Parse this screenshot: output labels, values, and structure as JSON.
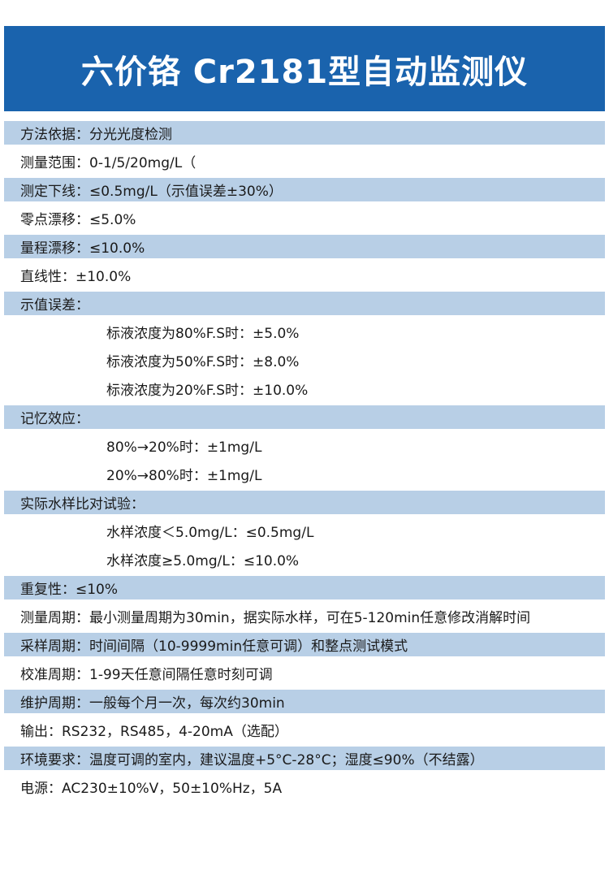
{
  "title": "六价铬 Cr2181型自动监测仪",
  "colors": {
    "header": "#1a63ad",
    "shaded_row": "#b8cfe6"
  },
  "rows": [
    {
      "text": "方法依据：分光光度检测",
      "shaded": true,
      "sub": false
    },
    {
      "text": "测量范围：0-1/5/20mg/L（",
      "shaded": false,
      "sub": false
    },
    {
      "text": "测定下线：≤0.5mg/L（示值误差±30%）",
      "shaded": true,
      "sub": false
    },
    {
      "text": "零点漂移：≤5.0%",
      "shaded": false,
      "sub": false
    },
    {
      "text": "量程漂移：≤10.0%",
      "shaded": true,
      "sub": false
    },
    {
      "text": "直线性：±10.0%",
      "shaded": false,
      "sub": false
    },
    {
      "text": "示值误差：",
      "shaded": true,
      "sub": false
    },
    {
      "text": "标液浓度为80%F.S时：±5.0%",
      "shaded": false,
      "sub": true
    },
    {
      "text": "标液浓度为50%F.S时：±8.0%",
      "shaded": false,
      "sub": true
    },
    {
      "text": "标液浓度为20%F.S时：±10.0%",
      "shaded": false,
      "sub": true
    },
    {
      "text": "记忆效应：",
      "shaded": true,
      "sub": false
    },
    {
      "text": "80%→20%时：±1mg/L",
      "shaded": false,
      "sub": true
    },
    {
      "text": "20%→80%时：±1mg/L",
      "shaded": false,
      "sub": true
    },
    {
      "text": "实际水样比对试验：",
      "shaded": true,
      "sub": false
    },
    {
      "text": "水样浓度＜5.0mg/L：≤0.5mg/L",
      "shaded": false,
      "sub": true
    },
    {
      "text": "水样浓度≥5.0mg/L：≤10.0%",
      "shaded": false,
      "sub": true
    },
    {
      "text": "重复性：≤10%",
      "shaded": true,
      "sub": false
    },
    {
      "text": "测量周期：最小测量周期为30min，据实际水样，可在5-120min任意修改消解时间",
      "shaded": false,
      "sub": false
    },
    {
      "text": "采样周期：时间间隔（10-9999min任意可调）和整点测试模式",
      "shaded": true,
      "sub": false
    },
    {
      "text": "校准周期：1-99天任意间隔任意时刻可调",
      "shaded": false,
      "sub": false
    },
    {
      "text": "维护周期：一般每个月一次，每次约30min",
      "shaded": true,
      "sub": false
    },
    {
      "text": "输出：RS232，RS485，4-20mA（选配）",
      "shaded": false,
      "sub": false
    },
    {
      "text": "环境要求：温度可调的室内，建议温度+5°C-28°C；湿度≤90%（不结露）",
      "shaded": true,
      "sub": false
    },
    {
      "text": "电源：AC230±10%V，50±10%Hz，5A",
      "shaded": false,
      "sub": false
    }
  ]
}
